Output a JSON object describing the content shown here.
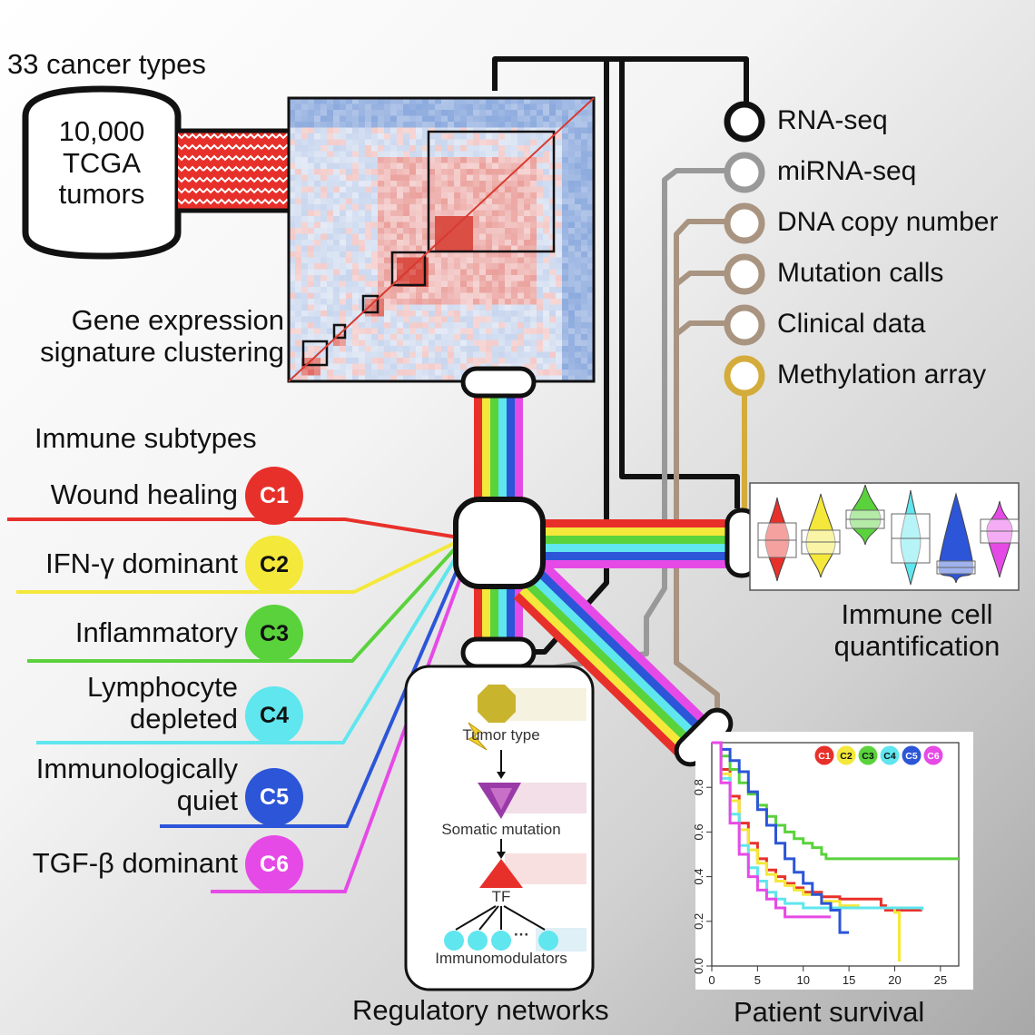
{
  "colors": {
    "c1": "#e8302a",
    "c2": "#f4e83a",
    "c3": "#5ad23c",
    "c4": "#5fe6ee",
    "c5": "#2c55d8",
    "c6": "#e64ae6",
    "black_line": "#111111",
    "grey_line": "#999999",
    "tan_line": "#a89480",
    "gold_line": "#d4ac3c"
  },
  "source": {
    "header": "33 cancer types",
    "tumors_line1": "10,000",
    "tumors_line2": "TCGA",
    "tumors_line3": "tumors"
  },
  "clustering": {
    "label_line1": "Gene expression",
    "label_line2": "signature clustering"
  },
  "data_types": [
    {
      "label": "RNA-seq",
      "color_key": "black_line"
    },
    {
      "label": "miRNA-seq",
      "color_key": "grey_line"
    },
    {
      "label": "DNA copy number",
      "color_key": "tan_line"
    },
    {
      "label": "Mutation calls",
      "color_key": "tan_line"
    },
    {
      "label": "Clinical data",
      "color_key": "tan_line"
    },
    {
      "label": "Methylation array",
      "color_key": "gold_line"
    }
  ],
  "subtypes": {
    "title": "Immune subtypes",
    "items": [
      {
        "code": "C1",
        "label_line1": "Wound healing",
        "label_line2": "",
        "color_key": "c1"
      },
      {
        "code": "C2",
        "label_line1": "IFN-γ dominant",
        "label_line2": "",
        "color_key": "c2"
      },
      {
        "code": "C3",
        "label_line1": "Inflammatory",
        "label_line2": "",
        "color_key": "c3"
      },
      {
        "code": "C4",
        "label_line1": "Lymphocyte",
        "label_line2": "depleted",
        "color_key": "c4"
      },
      {
        "code": "C5",
        "label_line1": "Immunologically",
        "label_line2": "quiet",
        "color_key": "c5"
      },
      {
        "code": "C6",
        "label_line1": "TGF-β dominant",
        "label_line2": "",
        "color_key": "c6"
      }
    ]
  },
  "immune_cell": {
    "label_line1": "Immune cell",
    "label_line2": "quantification"
  },
  "regulatory": {
    "title": "Regulatory networks",
    "tumor_type": "Tumor type",
    "somatic_mutation": "Somatic mutation",
    "tf": "TF",
    "ellipsis": "···",
    "immunomodulators": "Immunomodulators"
  },
  "survival": {
    "title": "Patient survival",
    "legend": [
      "C1",
      "C2",
      "C3",
      "C4",
      "C5",
      "C6"
    ]
  },
  "chart_data": {
    "type": "line",
    "title": "Patient survival",
    "xlabel": "",
    "ylabel": "",
    "xlim": [
      0,
      27
    ],
    "ylim": [
      0,
      1
    ],
    "xticks": [
      0,
      5,
      10,
      15,
      20,
      25
    ],
    "yticks": [
      0.0,
      0.2,
      0.4,
      0.6,
      0.8
    ],
    "ytick_labels": [
      "0.0",
      "0.2",
      "0.4",
      "0.6",
      "0.8"
    ],
    "legend_position": "top-right",
    "series": [
      {
        "name": "C1",
        "color_key": "c1",
        "points": [
          [
            0,
            1.0
          ],
          [
            1,
            0.88
          ],
          [
            2,
            0.76
          ],
          [
            3,
            0.64
          ],
          [
            4,
            0.55
          ],
          [
            5,
            0.48
          ],
          [
            6,
            0.43
          ],
          [
            7,
            0.4
          ],
          [
            8,
            0.37
          ],
          [
            9,
            0.35
          ],
          [
            10,
            0.33
          ],
          [
            12,
            0.31
          ],
          [
            14,
            0.3
          ],
          [
            18,
            0.3
          ],
          [
            18.5,
            0.27
          ],
          [
            19,
            0.25
          ],
          [
            23,
            0.25
          ]
        ]
      },
      {
        "name": "C2",
        "color_key": "c2",
        "points": [
          [
            0,
            1.0
          ],
          [
            1,
            0.86
          ],
          [
            2,
            0.74
          ],
          [
            3,
            0.61
          ],
          [
            4,
            0.52
          ],
          [
            5,
            0.46
          ],
          [
            6,
            0.41
          ],
          [
            7,
            0.38
          ],
          [
            8,
            0.36
          ],
          [
            9,
            0.34
          ],
          [
            10,
            0.32
          ],
          [
            12,
            0.29
          ],
          [
            14,
            0.27
          ],
          [
            16,
            0.26
          ],
          [
            19,
            0.26
          ],
          [
            20,
            0.24
          ],
          [
            20.5,
            0.02
          ]
        ]
      },
      {
        "name": "C3",
        "color_key": "c3",
        "points": [
          [
            0,
            1.0
          ],
          [
            1,
            0.94
          ],
          [
            2,
            0.88
          ],
          [
            3,
            0.82
          ],
          [
            4,
            0.77
          ],
          [
            5,
            0.72
          ],
          [
            6,
            0.67
          ],
          [
            7,
            0.63
          ],
          [
            8,
            0.6
          ],
          [
            9,
            0.57
          ],
          [
            10,
            0.55
          ],
          [
            11,
            0.53
          ],
          [
            12,
            0.5
          ],
          [
            12.5,
            0.48
          ],
          [
            27,
            0.48
          ]
        ]
      },
      {
        "name": "C4",
        "color_key": "c4",
        "points": [
          [
            0,
            1.0
          ],
          [
            1,
            0.84
          ],
          [
            2,
            0.68
          ],
          [
            3,
            0.54
          ],
          [
            4,
            0.44
          ],
          [
            5,
            0.38
          ],
          [
            6,
            0.33
          ],
          [
            7,
            0.3
          ],
          [
            8,
            0.28
          ],
          [
            10,
            0.26
          ],
          [
            14,
            0.26
          ],
          [
            23,
            0.25
          ]
        ]
      },
      {
        "name": "C5",
        "color_key": "c5",
        "points": [
          [
            0,
            1.0
          ],
          [
            1,
            0.97
          ],
          [
            2,
            0.92
          ],
          [
            3,
            0.87
          ],
          [
            4,
            0.78
          ],
          [
            5,
            0.7
          ],
          [
            6,
            0.63
          ],
          [
            7,
            0.55
          ],
          [
            8,
            0.48
          ],
          [
            9,
            0.42
          ],
          [
            10,
            0.37
          ],
          [
            11,
            0.32
          ],
          [
            12,
            0.28
          ],
          [
            13,
            0.25
          ],
          [
            14,
            0.15
          ],
          [
            15,
            0.15
          ]
        ]
      },
      {
        "name": "C6",
        "color_key": "c6",
        "points": [
          [
            0,
            1.0
          ],
          [
            1,
            0.82
          ],
          [
            2,
            0.64
          ],
          [
            3,
            0.5
          ],
          [
            4,
            0.4
          ],
          [
            5,
            0.34
          ],
          [
            6,
            0.3
          ],
          [
            7,
            0.26
          ],
          [
            8,
            0.22
          ],
          [
            10,
            0.22
          ],
          [
            13,
            0.22
          ]
        ]
      }
    ]
  }
}
